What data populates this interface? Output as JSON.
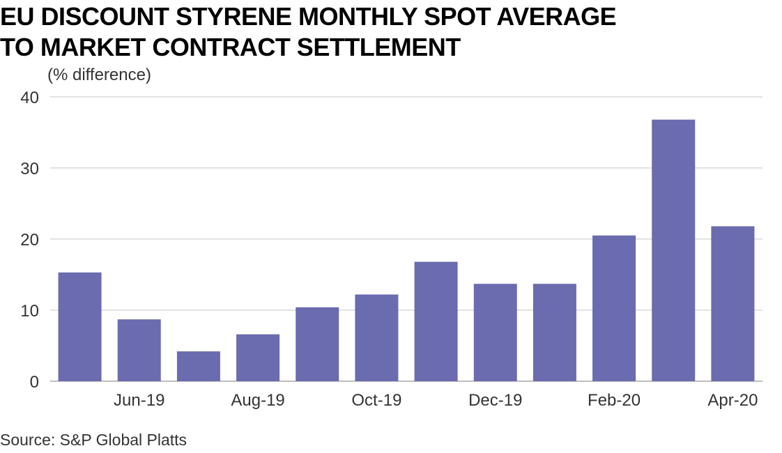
{
  "chart_data": {
    "type": "bar",
    "title_lines": [
      "EU DISCOUNT STYRENE MONTHLY SPOT AVERAGE",
      "TO MARKET CONTRACT SETTLEMENT"
    ],
    "ylabel": "(% difference)",
    "categories": [
      "May-19",
      "Jun-19",
      "Jul-19",
      "Aug-19",
      "Sep-19",
      "Oct-19",
      "Nov-19",
      "Dec-19",
      "Jan-20",
      "Feb-20",
      "Mar-20",
      "Apr-20"
    ],
    "x_tick_labels": [
      "",
      "Jun-19",
      "",
      "Aug-19",
      "",
      "Oct-19",
      "",
      "Dec-19",
      "",
      "Feb-20",
      "",
      "Apr-20"
    ],
    "values": [
      15.3,
      8.7,
      4.2,
      6.6,
      10.4,
      12.2,
      16.8,
      13.7,
      13.7,
      20.5,
      36.8,
      21.8
    ],
    "ylim": [
      0,
      40
    ],
    "yticks": [
      0,
      10,
      20,
      30,
      40
    ],
    "grid": true,
    "bar_color": "#6b6bb0",
    "grid_color": "#d9d9d9"
  },
  "source": "Source: S&P Global Platts"
}
